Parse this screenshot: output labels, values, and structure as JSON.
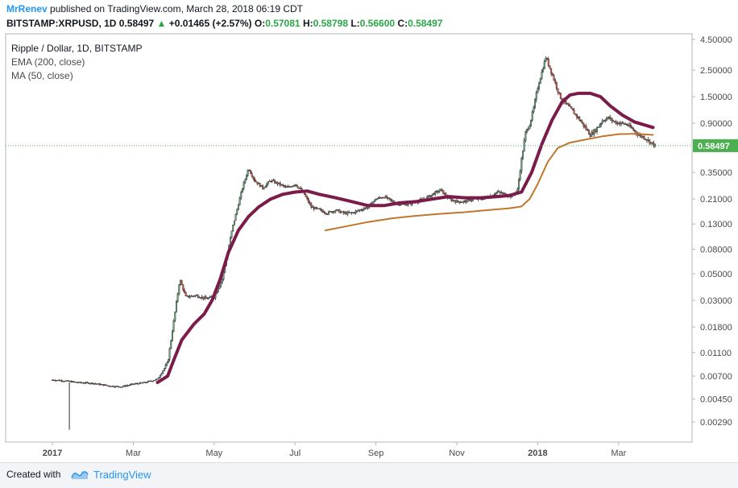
{
  "header": {
    "user": "MrRenev",
    "published": "published on TradingView.com, March 28, 2018 06:19 CDT",
    "symbol": "BITSTAMP:XRPUSD, 1D",
    "last": "0.58497",
    "change": "+0.01465 (+2.57%)",
    "o_label": "O:",
    "o_value": "0.57081",
    "h_label": "H:",
    "h_value": "0.58798",
    "l_label": "L:",
    "l_value": "0.56600",
    "c_label": "C:",
    "c_value": "0.58497"
  },
  "legend": {
    "title": "Ripple / Dollar, 1D, BITSTAMP",
    "ema": "EMA (200, close)",
    "ma": "MA (50, close)"
  },
  "footer": {
    "created_with": "Created with",
    "brand": "TradingView"
  },
  "colors": {
    "up": "#6ba583",
    "down": "#d75442",
    "ema": "#c0762c",
    "ma": "#7b1b4a",
    "price_line": "#4caf50",
    "price_badge": "#4caf50"
  },
  "chart_data": {
    "type": "candlestick",
    "y_scale": "log",
    "y_ticks": [
      "4.50000",
      "2.50000",
      "1.50000",
      "0.90000",
      "0.58497",
      "0.35000",
      "0.21000",
      "0.13000",
      "0.08000",
      "0.05000",
      "0.03000",
      "0.01800",
      "0.01100",
      "0.00700",
      "0.00450",
      "0.00290"
    ],
    "y_tick_values": [
      4.5,
      2.5,
      1.5,
      0.9,
      0.35,
      0.21,
      0.13,
      0.08,
      0.05,
      0.03,
      0.018,
      0.011,
      0.007,
      0.0045,
      0.0029
    ],
    "last_price_label": "0.58497",
    "last_price": 0.58497,
    "x_labels": [
      {
        "label": "2017",
        "month": 0,
        "bold": true
      },
      {
        "label": "Mar",
        "month": 2,
        "bold": false
      },
      {
        "label": "May",
        "month": 4,
        "bold": false
      },
      {
        "label": "Jul",
        "month": 6,
        "bold": false
      },
      {
        "label": "Sep",
        "month": 8,
        "bold": false
      },
      {
        "label": "Nov",
        "month": 10,
        "bold": false
      },
      {
        "label": "2018",
        "month": 12,
        "bold": true
      },
      {
        "label": "Mar",
        "month": 14,
        "bold": false
      }
    ],
    "price": [
      [
        0.0,
        0.0065
      ],
      [
        0.3,
        0.0064
      ],
      [
        0.6,
        0.0062
      ],
      [
        1.0,
        0.0061
      ],
      [
        1.4,
        0.0058
      ],
      [
        1.7,
        0.0057
      ],
      [
        2.0,
        0.006
      ],
      [
        2.3,
        0.0062
      ],
      [
        2.6,
        0.0066
      ],
      [
        2.85,
        0.009
      ],
      [
        3.0,
        0.02
      ],
      [
        3.15,
        0.045
      ],
      [
        3.3,
        0.032
      ],
      [
        3.55,
        0.033
      ],
      [
        3.8,
        0.031
      ],
      [
        4.0,
        0.032
      ],
      [
        4.2,
        0.045
      ],
      [
        4.45,
        0.12
      ],
      [
        4.7,
        0.26
      ],
      [
        4.85,
        0.38
      ],
      [
        5.0,
        0.3
      ],
      [
        5.2,
        0.26
      ],
      [
        5.4,
        0.3
      ],
      [
        5.6,
        0.28
      ],
      [
        5.8,
        0.26
      ],
      [
        6.0,
        0.28
      ],
      [
        6.2,
        0.24
      ],
      [
        6.4,
        0.18
      ],
      [
        6.6,
        0.17
      ],
      [
        6.8,
        0.16
      ],
      [
        7.0,
        0.17
      ],
      [
        7.2,
        0.16
      ],
      [
        7.4,
        0.16
      ],
      [
        7.6,
        0.17
      ],
      [
        7.8,
        0.18
      ],
      [
        8.0,
        0.21
      ],
      [
        8.2,
        0.22
      ],
      [
        8.4,
        0.2
      ],
      [
        8.6,
        0.19
      ],
      [
        8.8,
        0.19
      ],
      [
        9.0,
        0.2
      ],
      [
        9.2,
        0.21
      ],
      [
        9.4,
        0.23
      ],
      [
        9.6,
        0.25
      ],
      [
        9.8,
        0.21
      ],
      [
        10.0,
        0.2
      ],
      [
        10.2,
        0.2
      ],
      [
        10.4,
        0.21
      ],
      [
        10.6,
        0.21
      ],
      [
        10.8,
        0.22
      ],
      [
        11.0,
        0.24
      ],
      [
        11.2,
        0.23
      ],
      [
        11.35,
        0.22
      ],
      [
        11.5,
        0.25
      ],
      [
        11.6,
        0.45
      ],
      [
        11.7,
        0.75
      ],
      [
        11.8,
        0.88
      ],
      [
        11.9,
        1.2
      ],
      [
        12.0,
        1.8
      ],
      [
        12.1,
        2.4
      ],
      [
        12.2,
        3.2
      ],
      [
        12.3,
        2.6
      ],
      [
        12.4,
        2.1
      ],
      [
        12.55,
        1.5
      ],
      [
        12.7,
        1.3
      ],
      [
        12.85,
        1.15
      ],
      [
        13.0,
        1.0
      ],
      [
        13.15,
        0.85
      ],
      [
        13.3,
        0.72
      ],
      [
        13.45,
        0.8
      ],
      [
        13.6,
        0.95
      ],
      [
        13.75,
        1.0
      ],
      [
        13.9,
        0.92
      ],
      [
        14.05,
        0.9
      ],
      [
        14.2,
        0.88
      ],
      [
        14.35,
        0.8
      ],
      [
        14.5,
        0.72
      ],
      [
        14.65,
        0.68
      ],
      [
        14.8,
        0.62
      ],
      [
        14.9,
        0.58497
      ]
    ],
    "series": [
      {
        "name": "EMA (200, close)",
        "points": [
          [
            6.75,
            0.115
          ],
          [
            7.2,
            0.123
          ],
          [
            7.8,
            0.135
          ],
          [
            8.4,
            0.145
          ],
          [
            9.0,
            0.152
          ],
          [
            9.6,
            0.158
          ],
          [
            10.2,
            0.163
          ],
          [
            10.8,
            0.17
          ],
          [
            11.3,
            0.176
          ],
          [
            11.6,
            0.182
          ],
          [
            11.8,
            0.21
          ],
          [
            12.0,
            0.28
          ],
          [
            12.25,
            0.43
          ],
          [
            12.5,
            0.56
          ],
          [
            12.8,
            0.62
          ],
          [
            13.2,
            0.66
          ],
          [
            13.6,
            0.7
          ],
          [
            14.0,
            0.73
          ],
          [
            14.4,
            0.735
          ],
          [
            14.85,
            0.72
          ]
        ]
      },
      {
        "name": "MA (50, close)",
        "points": [
          [
            2.6,
            0.0062
          ],
          [
            2.85,
            0.007
          ],
          [
            3.0,
            0.0095
          ],
          [
            3.2,
            0.014
          ],
          [
            3.5,
            0.019
          ],
          [
            3.75,
            0.023
          ],
          [
            3.95,
            0.03
          ],
          [
            4.15,
            0.045
          ],
          [
            4.35,
            0.075
          ],
          [
            4.6,
            0.115
          ],
          [
            4.85,
            0.15
          ],
          [
            5.1,
            0.18
          ],
          [
            5.4,
            0.21
          ],
          [
            5.7,
            0.23
          ],
          [
            6.0,
            0.24
          ],
          [
            6.3,
            0.245
          ],
          [
            6.6,
            0.23
          ],
          [
            7.0,
            0.215
          ],
          [
            7.4,
            0.2
          ],
          [
            7.8,
            0.185
          ],
          [
            8.2,
            0.185
          ],
          [
            8.6,
            0.195
          ],
          [
            9.0,
            0.2
          ],
          [
            9.4,
            0.21
          ],
          [
            9.8,
            0.22
          ],
          [
            10.2,
            0.215
          ],
          [
            10.6,
            0.215
          ],
          [
            11.0,
            0.22
          ],
          [
            11.3,
            0.225
          ],
          [
            11.6,
            0.24
          ],
          [
            11.85,
            0.35
          ],
          [
            12.1,
            0.6
          ],
          [
            12.35,
            0.95
          ],
          [
            12.6,
            1.35
          ],
          [
            12.8,
            1.55
          ],
          [
            13.0,
            1.6
          ],
          [
            13.3,
            1.6
          ],
          [
            13.55,
            1.5
          ],
          [
            13.8,
            1.25
          ],
          [
            14.1,
            1.05
          ],
          [
            14.4,
            0.92
          ],
          [
            14.85,
            0.83
          ]
        ]
      }
    ]
  }
}
